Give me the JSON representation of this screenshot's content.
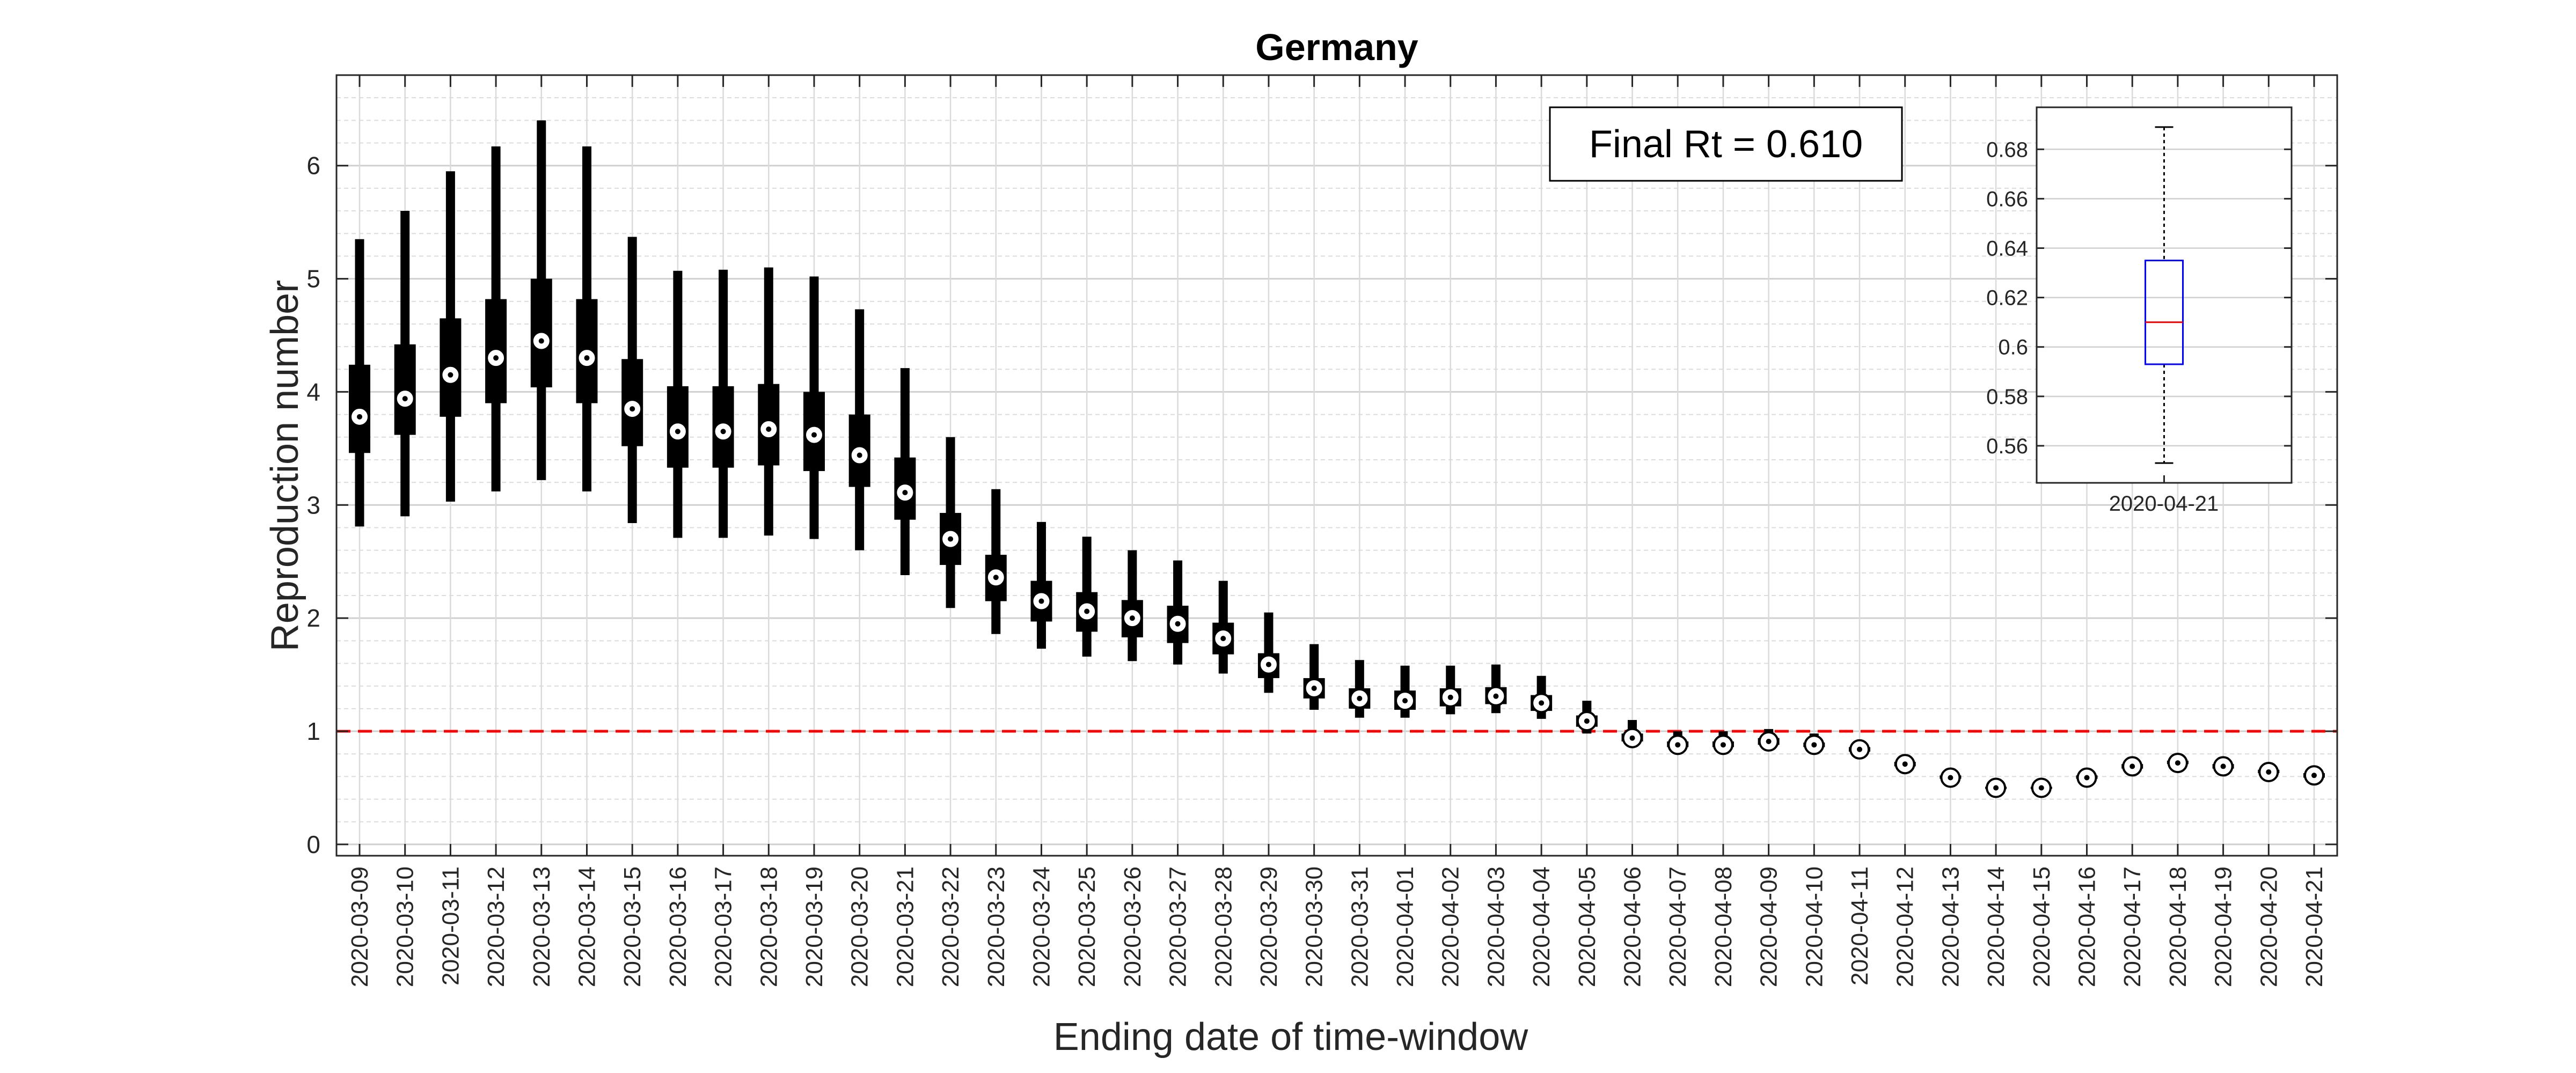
{
  "chart_data": [
    {
      "type": "boxplot",
      "title": "Germany",
      "xlabel": "Ending date of time-window",
      "ylabel": "Reproduction number",
      "ylim": [
        -0.1,
        6.8
      ],
      "yticks": [
        0,
        1,
        2,
        3,
        4,
        5,
        6
      ],
      "grid": true,
      "reference_line": {
        "y": 1,
        "color": "#ff0000",
        "style": "dashed"
      },
      "annotation": "Final Rt = 0.610",
      "categories": [
        "2020-03-09",
        "2020-03-10",
        "2020-03-11",
        "2020-03-12",
        "2020-03-13",
        "2020-03-14",
        "2020-03-15",
        "2020-03-16",
        "2020-03-17",
        "2020-03-18",
        "2020-03-19",
        "2020-03-20",
        "2020-03-21",
        "2020-03-22",
        "2020-03-23",
        "2020-03-24",
        "2020-03-25",
        "2020-03-26",
        "2020-03-27",
        "2020-03-28",
        "2020-03-29",
        "2020-03-30",
        "2020-03-31",
        "2020-04-01",
        "2020-04-02",
        "2020-04-03",
        "2020-04-04",
        "2020-04-05",
        "2020-04-06",
        "2020-04-07",
        "2020-04-08",
        "2020-04-09",
        "2020-04-10",
        "2020-04-11",
        "2020-04-12",
        "2020-04-13",
        "2020-04-14",
        "2020-04-15",
        "2020-04-16",
        "2020-04-17",
        "2020-04-18",
        "2020-04-19",
        "2020-04-20",
        "2020-04-21"
      ],
      "median": [
        3.78,
        3.94,
        4.15,
        4.3,
        4.45,
        4.3,
        3.85,
        3.65,
        3.65,
        3.67,
        3.62,
        3.44,
        3.11,
        2.7,
        2.36,
        2.15,
        2.06,
        2.0,
        1.95,
        1.82,
        1.59,
        1.38,
        1.29,
        1.27,
        1.3,
        1.31,
        1.25,
        1.09,
        0.94,
        0.88,
        0.88,
        0.91,
        0.88,
        0.84,
        0.71,
        0.59,
        0.5,
        0.5,
        0.59,
        0.69,
        0.72,
        0.69,
        0.64,
        0.61
      ],
      "q1": [
        3.46,
        3.62,
        3.78,
        3.9,
        4.04,
        3.9,
        3.52,
        3.33,
        3.33,
        3.35,
        3.3,
        3.16,
        2.87,
        2.47,
        2.15,
        1.97,
        1.88,
        1.83,
        1.78,
        1.68,
        1.47,
        1.29,
        1.2,
        1.19,
        1.22,
        1.24,
        1.18,
        1.04,
        0.91,
        0.86,
        0.86,
        0.88,
        0.86,
        0.82,
        0.69,
        0.58,
        0.49,
        0.49,
        0.58,
        0.67,
        0.71,
        0.67,
        0.63,
        0.59
      ],
      "q3": [
        4.24,
        4.42,
        4.65,
        4.82,
        5.0,
        4.82,
        4.29,
        4.05,
        4.05,
        4.07,
        4.0,
        3.8,
        3.42,
        2.93,
        2.56,
        2.33,
        2.23,
        2.16,
        2.11,
        1.96,
        1.69,
        1.47,
        1.38,
        1.36,
        1.38,
        1.39,
        1.32,
        1.14,
        0.98,
        0.91,
        0.91,
        0.94,
        0.9,
        0.86,
        0.73,
        0.61,
        0.51,
        0.51,
        0.61,
        0.71,
        0.74,
        0.71,
        0.66,
        0.63
      ],
      "whisker_low": [
        2.81,
        2.9,
        3.03,
        3.12,
        3.22,
        3.12,
        2.84,
        2.71,
        2.71,
        2.73,
        2.7,
        2.6,
        2.38,
        2.09,
        1.86,
        1.73,
        1.66,
        1.62,
        1.59,
        1.51,
        1.34,
        1.19,
        1.12,
        1.12,
        1.15,
        1.16,
        1.11,
        0.98,
        0.87,
        0.83,
        0.83,
        0.85,
        0.83,
        0.79,
        0.67,
        0.56,
        0.47,
        0.47,
        0.56,
        0.65,
        0.69,
        0.65,
        0.6,
        0.55
      ],
      "whisker_high": [
        5.35,
        5.6,
        5.95,
        6.17,
        6.4,
        6.17,
        5.37,
        5.07,
        5.08,
        5.1,
        5.02,
        4.73,
        4.21,
        3.6,
        3.14,
        2.85,
        2.72,
        2.6,
        2.51,
        2.33,
        2.05,
        1.77,
        1.63,
        1.58,
        1.58,
        1.59,
        1.49,
        1.27,
        1.1,
        1.0,
        1.0,
        1.02,
        0.98,
        0.91,
        0.76,
        0.64,
        0.54,
        0.54,
        0.64,
        0.74,
        0.77,
        0.74,
        0.7,
        0.69
      ]
    },
    {
      "type": "boxplot",
      "categories": [
        "2020-04-21"
      ],
      "ylim": [
        0.545,
        0.697
      ],
      "yticks": [
        0.56,
        0.58,
        0.6,
        0.62,
        0.64,
        0.66,
        0.68
      ],
      "ytick_labels": [
        "0.56",
        "0.58",
        "0.6",
        "0.62",
        "0.64",
        "0.66",
        "0.68"
      ],
      "median": 0.61,
      "q1": 0.593,
      "q3": 0.635,
      "whisker_low": 0.553,
      "whisker_high": 0.689,
      "box_color": "#0000ff",
      "median_color": "#ff0000",
      "grid": true
    }
  ]
}
